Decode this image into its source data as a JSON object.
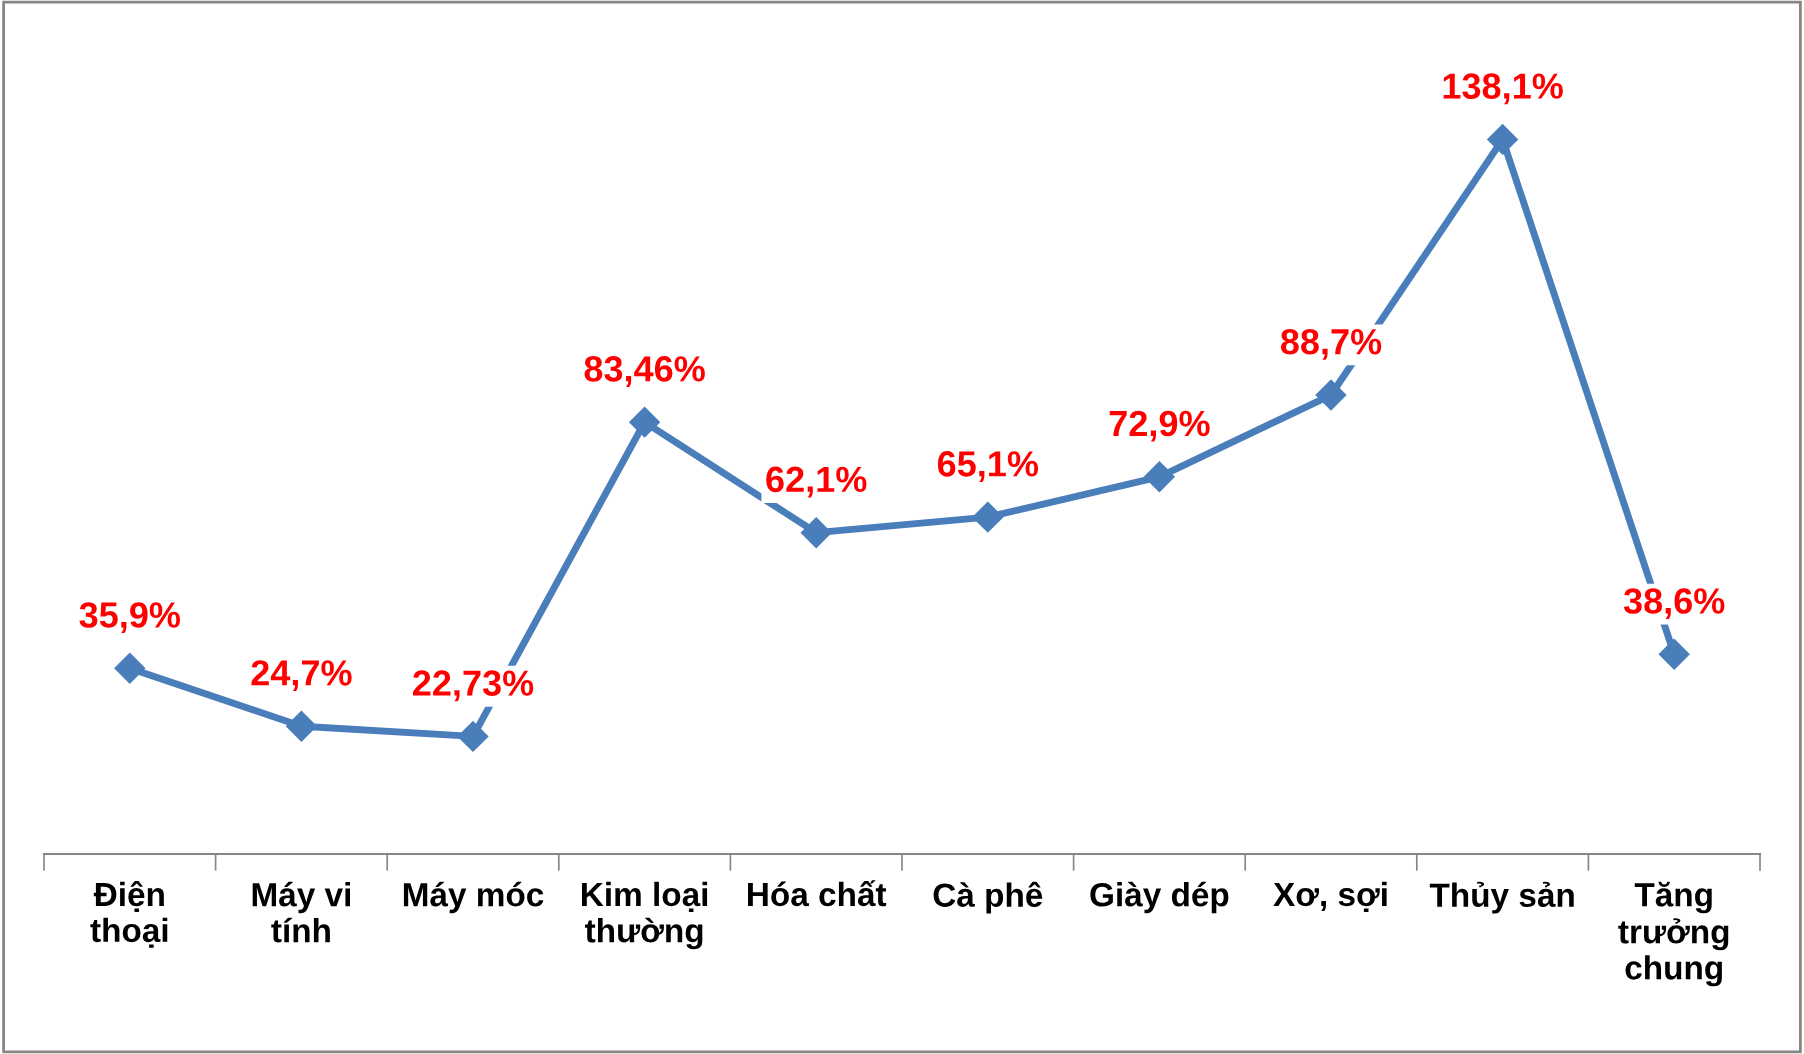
{
  "chart_data": {
    "type": "line",
    "categories": [
      "Điện\nthoại",
      "Máy vi\ntính",
      "Máy móc",
      "Kim loại\nthường",
      "Hóa chất",
      "Cà phê",
      "Giày dép",
      "Xơ, sợi",
      "Thủy sản",
      "Tăng\ntrưởng\nchung"
    ],
    "series": [
      {
        "color": "#4a7ebb",
        "values": [
          35.9,
          24.7,
          22.73,
          83.46,
          62.1,
          65.1,
          72.9,
          88.7,
          138.1,
          38.6
        ],
        "value_labels": [
          "35,9%",
          "24,7%",
          "22,73%",
          "83,46%",
          "62,1%",
          "65,1%",
          "72,9%",
          "88,7%",
          "138,1%",
          "38,6%"
        ]
      }
    ],
    "marker": "diamond",
    "line_style": "solid",
    "grid": false,
    "legend": false,
    "tick_labels": "x"
  }
}
